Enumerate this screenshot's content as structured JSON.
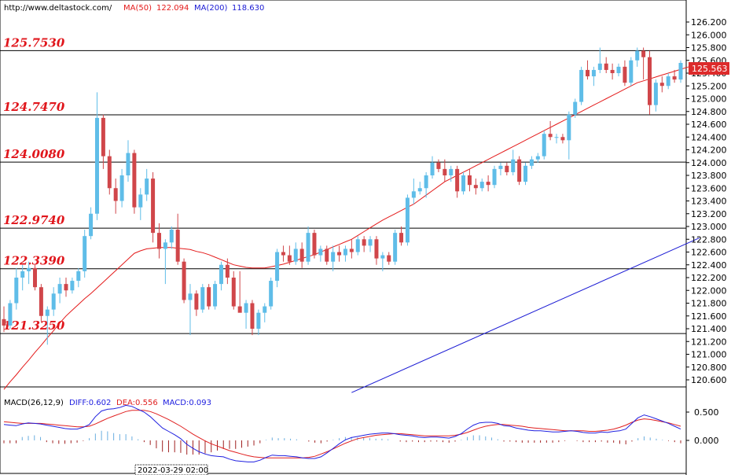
{
  "header": {
    "url": "http://www.deltastock.com/",
    "ma50_label": "MA(50)",
    "ma50_value": "122.094",
    "ma200_label": "MA(200)",
    "ma200_value": "118.630"
  },
  "colors": {
    "up_candle": "#5fbde8",
    "down_candle": "#d0464a",
    "ma50": "#e41a1a",
    "ma200": "#1a1ad4",
    "macd_diff": "#2020e0",
    "macd_dea": "#e02020",
    "hist_pos": "#6aaee0",
    "hist_neg": "#a02020",
    "level_text": "#e0151b",
    "last_price_bg": "#dd2b2b"
  },
  "macd_header": {
    "title": "MACD(26,12,9)",
    "diff": "DIFF:0.602",
    "dea": "DEA:0.556",
    "macd": "MACD:0.093"
  },
  "last_price": "125.563",
  "date_label": "2022-03-29 02:00",
  "chart_data": [
    {
      "type": "candlestick",
      "title": "",
      "ylim": [
        120.4,
        126.35
      ],
      "y_ticks": [
        "126.200",
        "126.000",
        "125.800",
        "125.600",
        "125.400",
        "125.200",
        "125.000",
        "124.800",
        "124.600",
        "124.400",
        "124.200",
        "124.000",
        "123.800",
        "123.600",
        "123.400",
        "123.200",
        "123.000",
        "122.800",
        "122.600",
        "122.400",
        "122.200",
        "122.000",
        "121.800",
        "121.600",
        "121.400",
        "121.200",
        "121.000",
        "120.800",
        "120.600"
      ],
      "levels": [
        {
          "label": "125.7530",
          "value": 125.753
        },
        {
          "label": "124.7470",
          "value": 124.747
        },
        {
          "label": "124.0080",
          "value": 124.008
        },
        {
          "label": "122.9740",
          "value": 122.974
        },
        {
          "label": "122.3390",
          "value": 122.339
        },
        {
          "label": "121.3250",
          "value": 121.325
        }
      ],
      "candles": [
        [
          121.55,
          121.75,
          121.35,
          121.45
        ],
        [
          121.45,
          121.85,
          121.4,
          121.8
        ],
        [
          121.8,
          122.35,
          121.7,
          122.2
        ],
        [
          122.2,
          122.4,
          122.0,
          122.3
        ],
        [
          122.3,
          122.45,
          122.1,
          122.35
        ],
        [
          122.35,
          122.4,
          122.0,
          122.05
        ],
        [
          122.05,
          122.1,
          121.5,
          121.6
        ],
        [
          121.6,
          121.75,
          121.15,
          121.7
        ],
        [
          121.7,
          122.05,
          121.6,
          121.95
        ],
        [
          121.95,
          122.2,
          121.8,
          122.1
        ],
        [
          122.1,
          122.2,
          121.9,
          122.0
        ],
        [
          122.0,
          122.2,
          121.95,
          122.15
        ],
        [
          122.15,
          122.35,
          122.05,
          122.3
        ],
        [
          122.3,
          122.95,
          122.2,
          122.85
        ],
        [
          122.85,
          123.3,
          122.8,
          123.2
        ],
        [
          123.2,
          125.1,
          123.1,
          124.7
        ],
        [
          124.7,
          124.75,
          123.9,
          124.1
        ],
        [
          124.1,
          124.2,
          123.5,
          123.6
        ],
        [
          123.6,
          123.75,
          123.2,
          123.4
        ],
        [
          123.4,
          123.9,
          123.3,
          123.8
        ],
        [
          123.8,
          124.35,
          123.7,
          124.15
        ],
        [
          124.15,
          124.2,
          123.2,
          123.3
        ],
        [
          123.3,
          123.6,
          123.1,
          123.5
        ],
        [
          123.5,
          123.9,
          123.4,
          123.75
        ],
        [
          123.75,
          123.85,
          122.75,
          122.9
        ],
        [
          122.9,
          123.05,
          122.5,
          122.65
        ],
        [
          122.65,
          122.8,
          122.1,
          122.75
        ],
        [
          122.75,
          123.0,
          122.65,
          122.95
        ],
        [
          122.95,
          123.2,
          122.4,
          122.45
        ],
        [
          122.45,
          122.5,
          121.8,
          121.85
        ],
        [
          121.85,
          122.1,
          121.3,
          121.95
        ],
        [
          121.95,
          122.0,
          121.6,
          121.7
        ],
        [
          121.7,
          122.1,
          121.65,
          122.05
        ],
        [
          122.05,
          122.1,
          121.7,
          121.75
        ],
        [
          121.75,
          122.15,
          121.7,
          122.1
        ],
        [
          122.1,
          122.45,
          122.0,
          122.4
        ],
        [
          122.4,
          122.5,
          122.1,
          122.2
        ],
        [
          122.2,
          122.3,
          121.7,
          121.75
        ],
        [
          121.75,
          122.3,
          121.7,
          121.65
        ],
        [
          121.65,
          121.85,
          121.4,
          121.8
        ],
        [
          121.8,
          121.85,
          121.3,
          121.4
        ],
        [
          121.4,
          121.7,
          121.3,
          121.65
        ],
        [
          121.65,
          121.8,
          121.5,
          121.75
        ],
        [
          121.75,
          122.2,
          121.7,
          122.15
        ],
        [
          122.15,
          122.65,
          122.05,
          122.6
        ],
        [
          122.6,
          122.7,
          122.45,
          122.55
        ],
        [
          122.55,
          122.7,
          122.4,
          122.45
        ],
        [
          122.45,
          122.75,
          122.4,
          122.65
        ],
        [
          122.65,
          122.75,
          122.35,
          122.45
        ],
        [
          122.45,
          123.0,
          122.4,
          122.9
        ],
        [
          122.9,
          122.95,
          122.5,
          122.55
        ],
        [
          122.55,
          122.7,
          122.45,
          122.65
        ],
        [
          122.65,
          122.7,
          122.4,
          122.45
        ],
        [
          122.45,
          122.7,
          122.3,
          122.6
        ],
        [
          122.6,
          122.7,
          122.45,
          122.55
        ],
        [
          122.55,
          122.7,
          122.45,
          122.65
        ],
        [
          122.65,
          122.8,
          122.5,
          122.6
        ],
        [
          122.6,
          122.85,
          122.55,
          122.8
        ],
        [
          122.8,
          122.85,
          122.6,
          122.7
        ],
        [
          122.7,
          122.85,
          122.6,
          122.8
        ],
        [
          122.8,
          122.85,
          122.4,
          122.5
        ],
        [
          122.5,
          122.6,
          122.3,
          122.55
        ],
        [
          122.55,
          122.6,
          122.4,
          122.45
        ],
        [
          122.45,
          122.95,
          122.4,
          122.9
        ],
        [
          122.9,
          123.0,
          122.7,
          122.75
        ],
        [
          122.75,
          123.5,
          122.7,
          123.45
        ],
        [
          123.45,
          123.75,
          123.35,
          123.55
        ],
        [
          123.55,
          123.7,
          123.5,
          123.6
        ],
        [
          123.6,
          123.85,
          123.45,
          123.8
        ],
        [
          123.8,
          124.1,
          123.75,
          124.0
        ],
        [
          124.0,
          124.05,
          123.85,
          123.9
        ],
        [
          123.9,
          124.05,
          123.7,
          123.8
        ],
        [
          123.8,
          123.95,
          123.7,
          123.9
        ],
        [
          123.9,
          123.95,
          123.45,
          123.55
        ],
        [
          123.55,
          123.85,
          123.5,
          123.8
        ],
        [
          123.8,
          123.9,
          123.55,
          123.65
        ],
        [
          123.65,
          123.75,
          123.5,
          123.6
        ],
        [
          123.6,
          123.75,
          123.55,
          123.7
        ],
        [
          123.7,
          123.8,
          123.55,
          123.65
        ],
        [
          123.65,
          123.95,
          123.6,
          123.9
        ],
        [
          123.9,
          124.0,
          123.8,
          123.95
        ],
        [
          123.95,
          124.0,
          123.8,
          123.85
        ],
        [
          123.85,
          124.2,
          123.8,
          124.05
        ],
        [
          124.05,
          124.1,
          123.65,
          123.7
        ],
        [
          123.7,
          124.0,
          123.65,
          123.95
        ],
        [
          123.95,
          124.1,
          123.9,
          124.05
        ],
        [
          124.05,
          124.15,
          124.0,
          124.1
        ],
        [
          124.1,
          124.5,
          124.05,
          124.45
        ],
        [
          124.45,
          124.65,
          124.35,
          124.4
        ],
        [
          124.4,
          124.45,
          124.3,
          124.4
        ],
        [
          124.4,
          124.45,
          124.3,
          124.35
        ],
        [
          124.35,
          124.8,
          124.05,
          124.75
        ],
        [
          124.75,
          125.0,
          124.7,
          124.95
        ],
        [
          124.95,
          125.5,
          124.9,
          125.45
        ],
        [
          125.45,
          125.6,
          125.3,
          125.35
        ],
        [
          125.35,
          125.5,
          125.2,
          125.45
        ],
        [
          125.45,
          125.8,
          125.4,
          125.55
        ],
        [
          125.55,
          125.65,
          125.4,
          125.45
        ],
        [
          125.45,
          125.55,
          125.3,
          125.4
        ],
        [
          125.4,
          125.55,
          125.35,
          125.5
        ],
        [
          125.5,
          125.6,
          125.2,
          125.25
        ],
        [
          125.25,
          125.65,
          125.2,
          125.6
        ],
        [
          125.6,
          125.8,
          125.5,
          125.75
        ],
        [
          125.75,
          125.8,
          125.3,
          125.65
        ],
        [
          125.65,
          125.75,
          124.75,
          124.9
        ],
        [
          124.9,
          125.3,
          124.8,
          125.25
        ],
        [
          125.25,
          125.35,
          125.1,
          125.2
        ],
        [
          125.2,
          125.4,
          125.15,
          125.35
        ],
        [
          125.35,
          125.45,
          125.25,
          125.3
        ],
        [
          125.3,
          125.6,
          125.25,
          125.56
        ]
      ],
      "ma50": [
        120.45,
        120.57,
        120.68,
        120.8,
        120.91,
        121.03,
        121.14,
        121.26,
        121.37,
        121.49,
        121.6,
        121.69,
        121.78,
        121.87,
        121.95,
        122.04,
        122.13,
        122.22,
        122.31,
        122.4,
        122.49,
        122.58,
        122.62,
        122.65,
        122.66,
        122.67,
        122.67,
        122.67,
        122.66,
        122.65,
        122.64,
        122.61,
        122.59,
        122.56,
        122.52,
        122.48,
        122.44,
        122.4,
        122.38,
        122.36,
        122.35,
        122.35,
        122.35,
        122.37,
        122.39,
        122.41,
        122.44,
        122.47,
        122.5,
        122.53,
        122.56,
        122.6,
        122.64,
        122.68,
        122.72,
        122.76,
        122.8,
        122.86,
        122.92,
        122.98,
        123.04,
        123.1,
        123.15,
        123.2,
        123.25,
        123.3,
        123.35,
        123.42,
        123.49,
        123.56,
        123.63,
        123.7,
        123.75,
        123.8,
        123.85,
        123.9,
        123.95,
        124.0,
        124.05,
        124.1,
        124.15,
        124.2,
        124.25,
        124.3,
        124.35,
        124.4,
        124.45,
        124.5,
        124.55,
        124.6,
        124.65,
        124.7,
        124.75,
        124.8,
        124.85,
        124.9,
        124.95,
        125.0,
        125.05,
        125.1,
        125.15,
        125.2,
        125.25,
        125.28,
        125.31,
        125.34,
        125.37,
        125.4,
        125.43,
        125.46,
        125.49,
        125.52
      ],
      "ma200": [
        {
          "i": 56.0,
          "v": 120.4
        },
        {
          "i": 112.0,
          "v": 122.82
        }
      ]
    },
    {
      "type": "line",
      "title": "MACD(26,12,9)",
      "y_ticks": [
        "0.500",
        "0.000"
      ],
      "ylim": [
        -0.6,
        0.7
      ],
      "diff": [
        0.28,
        0.27,
        0.26,
        0.29,
        0.31,
        0.3,
        0.29,
        0.27,
        0.25,
        0.23,
        0.21,
        0.2,
        0.2,
        0.23,
        0.28,
        0.42,
        0.52,
        0.55,
        0.56,
        0.58,
        0.62,
        0.6,
        0.55,
        0.5,
        0.42,
        0.32,
        0.22,
        0.16,
        0.1,
        0.03,
        -0.07,
        -0.14,
        -0.2,
        -0.24,
        -0.27,
        -0.28,
        -0.29,
        -0.33,
        -0.36,
        -0.37,
        -0.38,
        -0.38,
        -0.35,
        -0.3,
        -0.26,
        -0.27,
        -0.27,
        -0.28,
        -0.29,
        -0.31,
        -0.32,
        -0.32,
        -0.29,
        -0.22,
        -0.14,
        -0.06,
        0.01,
        0.05,
        0.07,
        0.09,
        0.11,
        0.12,
        0.13,
        0.13,
        0.12,
        0.1,
        0.09,
        0.08,
        0.06,
        0.05,
        0.06,
        0.06,
        0.05,
        0.04,
        0.07,
        0.12,
        0.2,
        0.27,
        0.31,
        0.32,
        0.32,
        0.3,
        0.26,
        0.25,
        0.22,
        0.2,
        0.18,
        0.17,
        0.17,
        0.16,
        0.15,
        0.15,
        0.16,
        0.17,
        0.16,
        0.14,
        0.13,
        0.13,
        0.15,
        0.14,
        0.16,
        0.17,
        0.2,
        0.3,
        0.4,
        0.45,
        0.42,
        0.38,
        0.34,
        0.3,
        0.25,
        0.2
      ],
      "dea": [
        0.33,
        0.32,
        0.31,
        0.3,
        0.3,
        0.3,
        0.3,
        0.29,
        0.28,
        0.27,
        0.26,
        0.25,
        0.24,
        0.24,
        0.25,
        0.29,
        0.34,
        0.39,
        0.43,
        0.47,
        0.51,
        0.53,
        0.53,
        0.53,
        0.51,
        0.47,
        0.42,
        0.37,
        0.31,
        0.25,
        0.18,
        0.11,
        0.05,
        -0.01,
        -0.06,
        -0.1,
        -0.14,
        -0.18,
        -0.21,
        -0.24,
        -0.27,
        -0.29,
        -0.3,
        -0.31,
        -0.31,
        -0.31,
        -0.31,
        -0.31,
        -0.31,
        -0.31,
        -0.3,
        -0.28,
        -0.24,
        -0.2,
        -0.15,
        -0.1,
        -0.05,
        -0.01,
        0.03,
        0.05,
        0.07,
        0.09,
        0.1,
        0.11,
        0.12,
        0.12,
        0.11,
        0.1,
        0.09,
        0.08,
        0.08,
        0.08,
        0.08,
        0.08,
        0.09,
        0.11,
        0.14,
        0.18,
        0.22,
        0.25,
        0.27,
        0.28,
        0.28,
        0.27,
        0.26,
        0.25,
        0.23,
        0.22,
        0.21,
        0.2,
        0.19,
        0.18,
        0.17,
        0.17,
        0.17,
        0.17,
        0.16,
        0.16,
        0.17,
        0.18,
        0.2,
        0.23,
        0.27,
        0.32,
        0.36,
        0.38,
        0.37,
        0.35,
        0.33,
        0.31,
        0.28,
        0.25
      ],
      "hist": [
        -0.05,
        -0.05,
        -0.05,
        0.06,
        0.08,
        0.09,
        0.06,
        -0.03,
        -0.05,
        -0.06,
        -0.06,
        -0.05,
        -0.04,
        -0.01,
        0.04,
        0.12,
        0.17,
        0.16,
        0.13,
        0.11,
        0.11,
        0.07,
        0.02,
        -0.03,
        -0.08,
        -0.14,
        -0.2,
        -0.21,
        -0.21,
        -0.22,
        -0.25,
        -0.25,
        -0.25,
        -0.23,
        -0.21,
        -0.18,
        -0.15,
        -0.15,
        -0.15,
        -0.13,
        -0.11,
        -0.09,
        -0.05,
        0.01,
        0.05,
        0.04,
        0.04,
        0.03,
        0.02,
        0.0,
        -0.02,
        -0.04,
        -0.05,
        -0.02,
        0.01,
        0.04,
        0.06,
        0.06,
        0.05,
        0.05,
        0.04,
        0.03,
        0.03,
        0.02,
        0.0,
        -0.02,
        -0.03,
        -0.02,
        -0.03,
        -0.03,
        -0.02,
        -0.02,
        -0.03,
        -0.04,
        -0.02,
        0.01,
        0.06,
        0.09,
        0.09,
        0.07,
        0.05,
        0.02,
        -0.02,
        -0.02,
        -0.03,
        -0.04,
        -0.04,
        -0.04,
        -0.04,
        -0.04,
        -0.04,
        -0.03,
        -0.01,
        0.0,
        -0.01,
        -0.03,
        -0.03,
        -0.03,
        -0.02,
        -0.04,
        -0.04,
        -0.06,
        -0.07,
        -0.02,
        0.04,
        0.07,
        0.05,
        0.03,
        0.01,
        -0.01,
        -0.03,
        -0.05
      ]
    }
  ]
}
